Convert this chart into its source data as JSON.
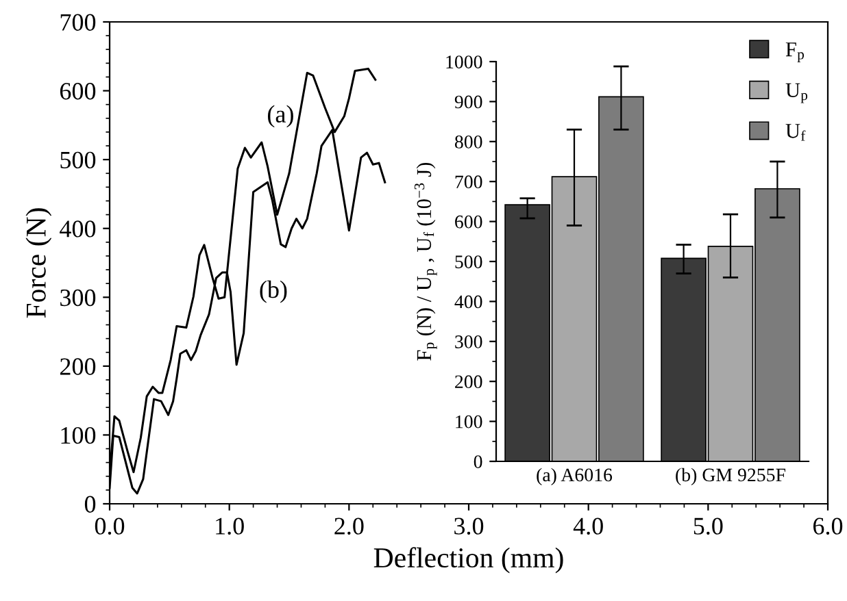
{
  "chart_data": [
    {
      "type": "line",
      "xlabel": "Deflection (mm)",
      "ylabel": "Force (N)",
      "xlim": [
        0,
        6
      ],
      "xticks": [
        {
          "value": 0,
          "label": "0.0"
        },
        {
          "value": 1,
          "label": "1.0"
        },
        {
          "value": 2,
          "label": "2.0"
        },
        {
          "value": 3,
          "label": "3.0"
        },
        {
          "value": 4,
          "label": "4.0"
        },
        {
          "value": 5,
          "label": "5.0"
        },
        {
          "value": 6,
          "label": "6.0"
        }
      ],
      "ylim": [
        0,
        700
      ],
      "yticks": [
        0,
        100,
        200,
        300,
        400,
        500,
        600,
        700
      ],
      "grid": false,
      "marker": "none",
      "line_style": "solid",
      "series": [
        {
          "color": "#000000",
          "x": [
            0,
            0.04,
            0.08,
            0.15,
            0.2,
            0.26,
            0.31,
            0.36,
            0.41,
            0.44,
            0.51,
            0.56,
            0.64,
            0.7,
            0.75,
            0.79,
            0.86,
            0.91,
            0.96,
            1.07,
            1.13,
            1.18,
            1.27,
            1.32,
            1.4,
            1.5,
            1.65,
            1.7,
            1.8,
            1.88,
            1.96,
            2.0,
            2.05,
            2.16,
            2.22
          ],
          "values": [
            43,
            127,
            121,
            76,
            46,
            96,
            156,
            170,
            161,
            161,
            209,
            258,
            256,
            301,
            361,
            376,
            328,
            298,
            300,
            487,
            517,
            503,
            525,
            490,
            420,
            480,
            626,
            622,
            575,
            540,
            563,
            589,
            629,
            632,
            616
          ]
        },
        {
          "color": "#000000",
          "x": [
            0,
            0.03,
            0.08,
            0.16,
            0.19,
            0.23,
            0.28,
            0.37,
            0.43,
            0.49,
            0.53,
            0.56,
            0.59,
            0.64,
            0.68,
            0.72,
            0.76,
            0.83,
            0.89,
            0.94,
            0.98,
            1.01,
            1.06,
            1.12,
            1.2,
            1.32,
            1.36,
            1.43,
            1.47,
            1.52,
            1.56,
            1.61,
            1.65,
            1.73,
            1.77,
            1.86,
            2.0,
            2.1,
            2.15,
            2.2,
            2.25,
            2.3
          ],
          "values": [
            23,
            99,
            97,
            43,
            23,
            15,
            36,
            152,
            149,
            129,
            149,
            182,
            218,
            223,
            209,
            222,
            245,
            275,
            328,
            336,
            336,
            308,
            202,
            248,
            453,
            467,
            440,
            377,
            373,
            400,
            414,
            400,
            414,
            480,
            520,
            543,
            397,
            503,
            510,
            493,
            495,
            467
          ]
        }
      ],
      "annotations": [
        "(a)",
        "(b)"
      ]
    },
    {
      "type": "bar",
      "ylabel": "F$_{p}$ (N) / U$_{p}$ , U$_{f}$ (10$^{−3}$ J)",
      "categories": [
        "(a) A6016",
        "(b) GM 9255F"
      ],
      "ylim": [
        0,
        1000
      ],
      "yticks": [
        0,
        100,
        200,
        300,
        400,
        500,
        600,
        700,
        800,
        900,
        1000
      ],
      "grid": false,
      "legend": "top right",
      "series": [
        {
          "name": "F$_{p}$",
          "color": "#3a3a3a",
          "values": [
            642,
            508
          ],
          "errors": [
            [
              608,
              658
            ],
            [
              470,
              542
            ]
          ]
        },
        {
          "name": "U$_{p}$",
          "color": "#a8a8a8",
          "values": [
            712,
            538
          ],
          "errors": [
            [
              590,
              830
            ],
            [
              460,
              618
            ]
          ]
        },
        {
          "name": "U$_{f}$",
          "color": "#7c7c7c",
          "values": [
            912,
            682
          ],
          "errors": [
            [
              830,
              988
            ],
            [
              610,
              750
            ]
          ]
        }
      ]
    }
  ]
}
